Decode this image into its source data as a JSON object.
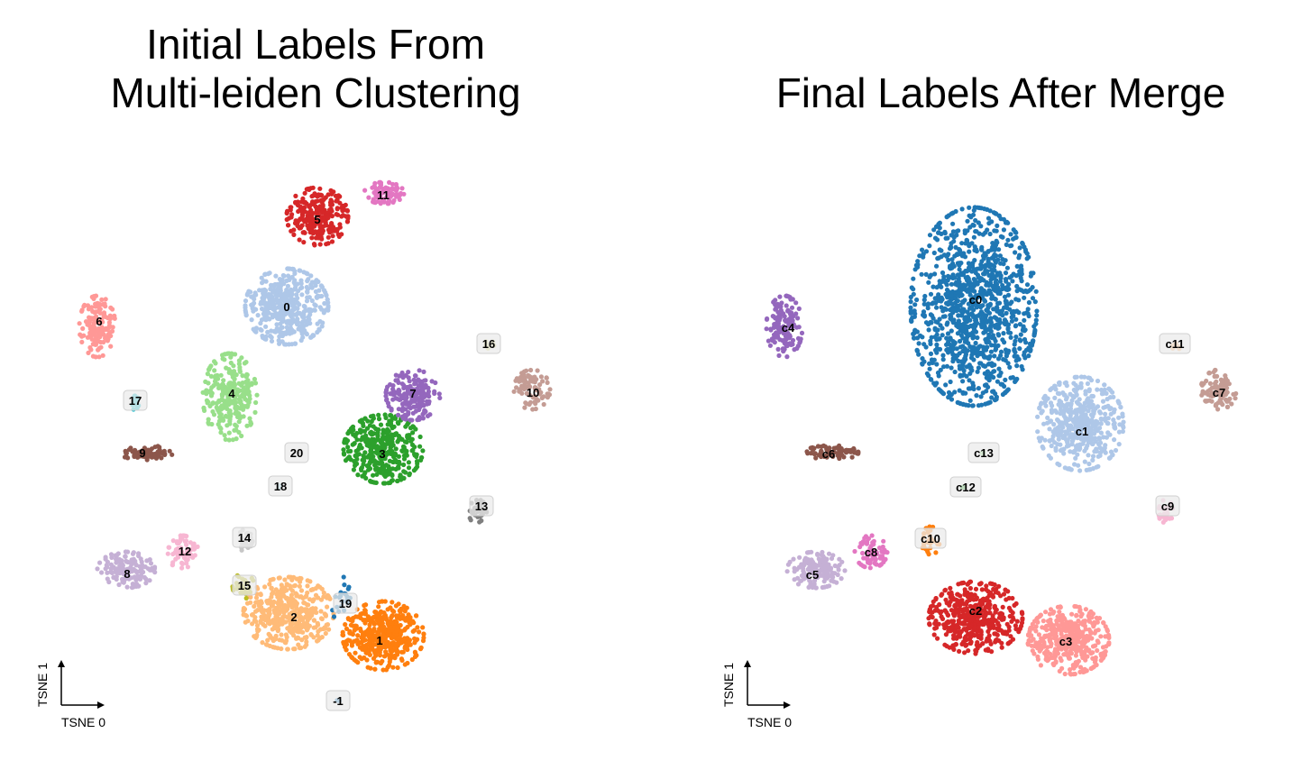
{
  "chart_data": [
    {
      "type": "scatter",
      "title_lines": [
        "Initial Labels From",
        "Multi-leiden Clustering"
      ],
      "xlabel": "TSNE 0",
      "ylabel": "TSNE 1",
      "grid": false,
      "legend": "none",
      "clusters": [
        {
          "label": "0",
          "color": "#aec7e8",
          "center": [
            318,
            340
          ],
          "spread": [
            46,
            42
          ],
          "count": 420
        },
        {
          "label": "1",
          "color": "#ff7f0e",
          "center": [
            425,
            705
          ],
          "spread": [
            45,
            38
          ],
          "count": 400
        },
        {
          "label": "2",
          "color": "#ffbb78",
          "center": [
            320,
            680
          ],
          "spread": [
            50,
            40
          ],
          "count": 420
        },
        {
          "label": "3",
          "color": "#2ca02c",
          "center": [
            425,
            498
          ],
          "spread": [
            44,
            38
          ],
          "count": 380
        },
        {
          "label": "4",
          "color": "#98df8a",
          "center": [
            255,
            440
          ],
          "spread": [
            30,
            48
          ],
          "count": 260
        },
        {
          "label": "5",
          "color": "#d62728",
          "center": [
            352,
            240
          ],
          "spread": [
            34,
            32
          ],
          "count": 260
        },
        {
          "label": "6",
          "color": "#ff9896",
          "center": [
            108,
            362
          ],
          "spread": [
            20,
            34
          ],
          "count": 140
        },
        {
          "label": "7",
          "color": "#9467bd",
          "center": [
            458,
            438
          ],
          "spread": [
            30,
            28
          ],
          "count": 190
        },
        {
          "label": "8",
          "color": "#c5b0d5",
          "center": [
            140,
            632
          ],
          "spread": [
            32,
            20
          ],
          "count": 150
        },
        {
          "label": "9",
          "color": "#8c564b",
          "center": [
            162,
            502
          ],
          "spread": [
            30,
            8
          ],
          "count": 70
        },
        {
          "label": "10",
          "color": "#c49c94",
          "center": [
            590,
            432
          ],
          "spread": [
            20,
            22
          ],
          "count": 90
        },
        {
          "label": "11",
          "color": "#e377c2",
          "center": [
            426,
            214
          ],
          "spread": [
            22,
            12
          ],
          "count": 80
        },
        {
          "label": "12",
          "color": "#f7b6d2",
          "center": [
            202,
            612
          ],
          "spread": [
            18,
            18
          ],
          "count": 70
        },
        {
          "label": "13",
          "color": "#7f7f7f",
          "center": [
            530,
            568
          ],
          "spread": [
            10,
            14
          ],
          "count": 35
        },
        {
          "label": "14",
          "color": "#c7c7c7",
          "center": [
            272,
            600
          ],
          "spread": [
            8,
            14
          ],
          "count": 30
        },
        {
          "label": "15",
          "color": "#bcbd22",
          "center": [
            270,
            650
          ],
          "spread": [
            12,
            14
          ],
          "count": 35
        },
        {
          "label": "16",
          "color": "#dbdb8d",
          "center": [
            542,
            382
          ],
          "spread": [
            6,
            6
          ],
          "count": 8
        },
        {
          "label": "17",
          "color": "#17becf",
          "center": [
            150,
            447
          ],
          "spread": [
            4,
            8
          ],
          "count": 14
        },
        {
          "label": "18",
          "color": "#9edae5",
          "center": [
            310,
            540
          ],
          "spread": [
            3,
            3
          ],
          "count": 3
        },
        {
          "label": "19",
          "color": "#1f77b4",
          "center": [
            382,
            668
          ],
          "spread": [
            14,
            28
          ],
          "count": 22
        },
        {
          "label": "20",
          "color": "#cccccc",
          "center": [
            329,
            502
          ],
          "spread": [
            3,
            3
          ],
          "count": 2
        },
        {
          "label": "-1",
          "color": "#1f77b4",
          "center": [
            375,
            776
          ],
          "spread": [
            2,
            3
          ],
          "count": 3
        }
      ],
      "label_positions": [
        {
          "text": "0",
          "at": [
            318,
            340
          ],
          "box": false
        },
        {
          "text": "1",
          "at": [
            421,
            710
          ],
          "box": false
        },
        {
          "text": "2",
          "at": [
            326,
            684
          ],
          "box": false
        },
        {
          "text": "3",
          "at": [
            424,
            503
          ],
          "box": false
        },
        {
          "text": "4",
          "at": [
            257,
            436
          ],
          "box": false
        },
        {
          "text": "5",
          "at": [
            352,
            243
          ],
          "box": false
        },
        {
          "text": "6",
          "at": [
            110,
            356
          ],
          "box": false
        },
        {
          "text": "7",
          "at": [
            458,
            436
          ],
          "box": false
        },
        {
          "text": "8",
          "at": [
            141,
            636
          ],
          "box": false
        },
        {
          "text": "9",
          "at": [
            158,
            502
          ],
          "box": false
        },
        {
          "text": "10",
          "at": [
            591,
            435
          ],
          "box": false
        },
        {
          "text": "11",
          "at": [
            425,
            216
          ],
          "box": false
        },
        {
          "text": "12",
          "at": [
            205,
            611
          ],
          "box": false
        },
        {
          "text": "13",
          "at": [
            534,
            561
          ],
          "box": true
        },
        {
          "text": "14",
          "at": [
            271,
            596
          ],
          "box": true
        },
        {
          "text": "15",
          "at": [
            271,
            649
          ],
          "box": true
        },
        {
          "text": "16",
          "at": [
            542,
            381
          ],
          "box": true
        },
        {
          "text": "17",
          "at": [
            150,
            444
          ],
          "box": true
        },
        {
          "text": "18",
          "at": [
            311,
            539
          ],
          "box": true
        },
        {
          "text": "19",
          "at": [
            383,
            669
          ],
          "box": true
        },
        {
          "text": "20",
          "at": [
            329,
            502
          ],
          "box": true
        },
        {
          "text": "-1",
          "at": [
            375,
            777
          ],
          "box": true
        }
      ],
      "axis_origin": [
        68,
        782
      ]
    },
    {
      "type": "scatter",
      "title_lines": [
        "Final Labels After Merge"
      ],
      "xlabel": "TSNE 0",
      "ylabel": "TSNE 1",
      "grid": false,
      "legend": "none",
      "clusters": [
        {
          "label": "c0",
          "color": "#1f77b4",
          "center": [
            1080,
            340
          ],
          "spread": [
            70,
            110
          ],
          "count": 1100
        },
        {
          "label": "c1",
          "color": "#aec7e8",
          "center": [
            1198,
            470
          ],
          "spread": [
            48,
            52
          ],
          "count": 460
        },
        {
          "label": "c2",
          "color": "#d62728",
          "center": [
            1082,
            685
          ],
          "spread": [
            52,
            40
          ],
          "count": 440
        },
        {
          "label": "c3",
          "color": "#ff9896",
          "center": [
            1185,
            710
          ],
          "spread": [
            45,
            38
          ],
          "count": 400
        },
        {
          "label": "c4",
          "color": "#9467bd",
          "center": [
            870,
            362
          ],
          "spread": [
            20,
            34
          ],
          "count": 140
        },
        {
          "label": "c5",
          "color": "#c5b0d5",
          "center": [
            905,
            632
          ],
          "spread": [
            32,
            20
          ],
          "count": 150
        },
        {
          "label": "c6",
          "color": "#8c564b",
          "center": [
            922,
            502
          ],
          "spread": [
            30,
            8
          ],
          "count": 70
        },
        {
          "label": "c7",
          "color": "#c49c94",
          "center": [
            1352,
            432
          ],
          "spread": [
            20,
            22
          ],
          "count": 90
        },
        {
          "label": "c8",
          "color": "#e377c2",
          "center": [
            966,
            612
          ],
          "spread": [
            18,
            18
          ],
          "count": 70
        },
        {
          "label": "c9",
          "color": "#f7b6d2",
          "center": [
            1293,
            568
          ],
          "spread": [
            8,
            14
          ],
          "count": 30
        },
        {
          "label": "c10",
          "color": "#ff7f0e",
          "center": [
            1032,
            600
          ],
          "spread": [
            10,
            16
          ],
          "count": 32
        },
        {
          "label": "c11",
          "color": "#ffbb78",
          "center": [
            1303,
            385
          ],
          "spread": [
            5,
            6
          ],
          "count": 8
        },
        {
          "label": "c12",
          "color": "#2ca02c",
          "center": [
            1068,
            540
          ],
          "spread": [
            3,
            3
          ],
          "count": 3
        },
        {
          "label": "c13",
          "color": "#98df8a",
          "center": [
            1090,
            502
          ],
          "spread": [
            3,
            3
          ],
          "count": 3
        }
      ],
      "label_positions": [
        {
          "text": "c0",
          "at": [
            1082,
            332
          ],
          "box": false
        },
        {
          "text": "c1",
          "at": [
            1200,
            478
          ],
          "box": false
        },
        {
          "text": "c2",
          "at": [
            1082,
            677
          ],
          "box": false
        },
        {
          "text": "c3",
          "at": [
            1182,
            711
          ],
          "box": false
        },
        {
          "text": "c4",
          "at": [
            874,
            363
          ],
          "box": false
        },
        {
          "text": "c5",
          "at": [
            901,
            637
          ],
          "box": false
        },
        {
          "text": "c6",
          "at": [
            919,
            503
          ],
          "box": false
        },
        {
          "text": "c7",
          "at": [
            1352,
            435
          ],
          "box": false
        },
        {
          "text": "c8",
          "at": [
            966,
            612
          ],
          "box": false
        },
        {
          "text": "c9",
          "at": [
            1295,
            561
          ],
          "box": true
        },
        {
          "text": "c10",
          "at": [
            1032,
            597
          ],
          "box": true
        },
        {
          "text": "c11",
          "at": [
            1303,
            381
          ],
          "box": true
        },
        {
          "text": "c12",
          "at": [
            1071,
            540
          ],
          "box": true
        },
        {
          "text": "c13",
          "at": [
            1091,
            502
          ],
          "box": true
        }
      ],
      "axis_origin": [
        829,
        782
      ]
    }
  ]
}
